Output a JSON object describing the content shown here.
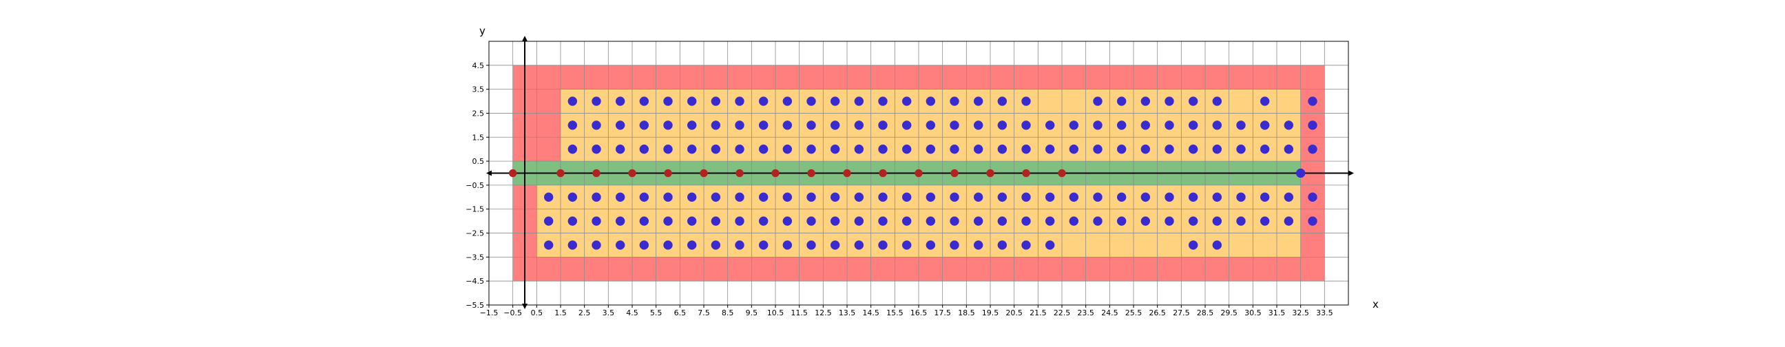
{
  "chart_data": {
    "type": "scatter",
    "title": "",
    "xlabel": "x",
    "ylabel": "y",
    "xlim": [
      -1.5,
      34.5
    ],
    "ylim": [
      -5.5,
      5.5
    ],
    "x_ticks": [
      "-1.5",
      "-0.5",
      "0.5",
      "1.5",
      "2.5",
      "3.5",
      "4.5",
      "5.5",
      "6.5",
      "7.5",
      "8.5",
      "9.5",
      "10.5",
      "11.5",
      "12.5",
      "13.5",
      "14.5",
      "15.5",
      "16.5",
      "17.5",
      "18.5",
      "19.5",
      "20.5",
      "21.5",
      "22.5",
      "23.5",
      "24.5",
      "25.5",
      "26.5",
      "27.5",
      "28.5",
      "29.5",
      "30.5",
      "31.5",
      "32.5",
      "33.5"
    ],
    "y_ticks": [
      "-5.5",
      "-4.5",
      "-3.5",
      "-2.5",
      "-1.5",
      "-0.5",
      "0.5",
      "1.5",
      "2.5",
      "3.5",
      "4.5"
    ],
    "grid": true,
    "regions": [
      {
        "name": "outer",
        "color": "#ff7f7f",
        "x": [
          -0.5,
          33.5
        ],
        "y": [
          -4.5,
          4.5
        ]
      },
      {
        "name": "upper-inner",
        "color": "#ffd27f",
        "x": [
          1.5,
          32.5
        ],
        "y": [
          0.5,
          3.5
        ]
      },
      {
        "name": "lower-inner",
        "color": "#ffd27f",
        "x": [
          0.5,
          32.5
        ],
        "y": [
          -3.5,
          -0.5
        ]
      },
      {
        "name": "axis-band",
        "color": "#7fbf7f",
        "x": [
          -0.5,
          32.5
        ],
        "y": [
          -0.5,
          0.5
        ]
      }
    ],
    "series": [
      {
        "color": "#3a2bd0",
        "points": [
          [
            2,
            3
          ],
          [
            3,
            3
          ],
          [
            4,
            3
          ],
          [
            5,
            3
          ],
          [
            6,
            3
          ],
          [
            7,
            3
          ],
          [
            8,
            3
          ],
          [
            9,
            3
          ],
          [
            10,
            3
          ],
          [
            11,
            3
          ],
          [
            12,
            3
          ],
          [
            13,
            3
          ],
          [
            14,
            3
          ],
          [
            15,
            3
          ],
          [
            16,
            3
          ],
          [
            17,
            3
          ],
          [
            18,
            3
          ],
          [
            19,
            3
          ],
          [
            20,
            3
          ],
          [
            21,
            3
          ],
          [
            24,
            3
          ],
          [
            25,
            3
          ],
          [
            26,
            3
          ],
          [
            27,
            3
          ],
          [
            28,
            3
          ],
          [
            29,
            3
          ],
          [
            31,
            3
          ],
          [
            33,
            3
          ],
          [
            2,
            2
          ],
          [
            3,
            2
          ],
          [
            4,
            2
          ],
          [
            5,
            2
          ],
          [
            6,
            2
          ],
          [
            7,
            2
          ],
          [
            8,
            2
          ],
          [
            9,
            2
          ],
          [
            10,
            2
          ],
          [
            11,
            2
          ],
          [
            12,
            2
          ],
          [
            13,
            2
          ],
          [
            14,
            2
          ],
          [
            15,
            2
          ],
          [
            16,
            2
          ],
          [
            17,
            2
          ],
          [
            18,
            2
          ],
          [
            19,
            2
          ],
          [
            20,
            2
          ],
          [
            21,
            2
          ],
          [
            22,
            2
          ],
          [
            23,
            2
          ],
          [
            24,
            2
          ],
          [
            25,
            2
          ],
          [
            26,
            2
          ],
          [
            27,
            2
          ],
          [
            28,
            2
          ],
          [
            29,
            2
          ],
          [
            30,
            2
          ],
          [
            31,
            2
          ],
          [
            32,
            2
          ],
          [
            33,
            2
          ],
          [
            2,
            1
          ],
          [
            3,
            1
          ],
          [
            4,
            1
          ],
          [
            5,
            1
          ],
          [
            6,
            1
          ],
          [
            7,
            1
          ],
          [
            8,
            1
          ],
          [
            9,
            1
          ],
          [
            10,
            1
          ],
          [
            11,
            1
          ],
          [
            12,
            1
          ],
          [
            13,
            1
          ],
          [
            14,
            1
          ],
          [
            15,
            1
          ],
          [
            16,
            1
          ],
          [
            17,
            1
          ],
          [
            18,
            1
          ],
          [
            19,
            1
          ],
          [
            20,
            1
          ],
          [
            21,
            1
          ],
          [
            22,
            1
          ],
          [
            23,
            1
          ],
          [
            24,
            1
          ],
          [
            25,
            1
          ],
          [
            26,
            1
          ],
          [
            27,
            1
          ],
          [
            28,
            1
          ],
          [
            29,
            1
          ],
          [
            30,
            1
          ],
          [
            31,
            1
          ],
          [
            32,
            1
          ],
          [
            33,
            1
          ],
          [
            32.5,
            0
          ],
          [
            1,
            -1
          ],
          [
            2,
            -1
          ],
          [
            3,
            -1
          ],
          [
            4,
            -1
          ],
          [
            5,
            -1
          ],
          [
            6,
            -1
          ],
          [
            7,
            -1
          ],
          [
            8,
            -1
          ],
          [
            9,
            -1
          ],
          [
            10,
            -1
          ],
          [
            11,
            -1
          ],
          [
            12,
            -1
          ],
          [
            13,
            -1
          ],
          [
            14,
            -1
          ],
          [
            15,
            -1
          ],
          [
            16,
            -1
          ],
          [
            17,
            -1
          ],
          [
            18,
            -1
          ],
          [
            19,
            -1
          ],
          [
            20,
            -1
          ],
          [
            21,
            -1
          ],
          [
            22,
            -1
          ],
          [
            23,
            -1
          ],
          [
            24,
            -1
          ],
          [
            25,
            -1
          ],
          [
            26,
            -1
          ],
          [
            27,
            -1
          ],
          [
            28,
            -1
          ],
          [
            29,
            -1
          ],
          [
            30,
            -1
          ],
          [
            31,
            -1
          ],
          [
            32,
            -1
          ],
          [
            33,
            -1
          ],
          [
            1,
            -2
          ],
          [
            2,
            -2
          ],
          [
            3,
            -2
          ],
          [
            4,
            -2
          ],
          [
            5,
            -2
          ],
          [
            6,
            -2
          ],
          [
            7,
            -2
          ],
          [
            8,
            -2
          ],
          [
            9,
            -2
          ],
          [
            10,
            -2
          ],
          [
            11,
            -2
          ],
          [
            12,
            -2
          ],
          [
            13,
            -2
          ],
          [
            14,
            -2
          ],
          [
            15,
            -2
          ],
          [
            16,
            -2
          ],
          [
            17,
            -2
          ],
          [
            18,
            -2
          ],
          [
            19,
            -2
          ],
          [
            20,
            -2
          ],
          [
            21,
            -2
          ],
          [
            22,
            -2
          ],
          [
            23,
            -2
          ],
          [
            24,
            -2
          ],
          [
            25,
            -2
          ],
          [
            26,
            -2
          ],
          [
            27,
            -2
          ],
          [
            28,
            -2
          ],
          [
            29,
            -2
          ],
          [
            30,
            -2
          ],
          [
            31,
            -2
          ],
          [
            32,
            -2
          ],
          [
            33,
            -2
          ],
          [
            1,
            -3
          ],
          [
            2,
            -3
          ],
          [
            3,
            -3
          ],
          [
            4,
            -3
          ],
          [
            5,
            -3
          ],
          [
            6,
            -3
          ],
          [
            7,
            -3
          ],
          [
            8,
            -3
          ],
          [
            9,
            -3
          ],
          [
            10,
            -3
          ],
          [
            11,
            -3
          ],
          [
            12,
            -3
          ],
          [
            13,
            -3
          ],
          [
            14,
            -3
          ],
          [
            15,
            -3
          ],
          [
            16,
            -3
          ],
          [
            17,
            -3
          ],
          [
            18,
            -3
          ],
          [
            19,
            -3
          ],
          [
            20,
            -3
          ],
          [
            21,
            -3
          ],
          [
            22,
            -3
          ],
          [
            28,
            -3
          ],
          [
            29,
            -3
          ]
        ]
      },
      {
        "color": "#b22222",
        "points": [
          [
            -0.5,
            0
          ],
          [
            1.5,
            0
          ],
          [
            3,
            0
          ],
          [
            4.5,
            0
          ],
          [
            6,
            0
          ],
          [
            7.5,
            0
          ],
          [
            9,
            0
          ],
          [
            10.5,
            0
          ],
          [
            12,
            0
          ],
          [
            13.5,
            0
          ],
          [
            15,
            0
          ],
          [
            16.5,
            0
          ],
          [
            18,
            0
          ],
          [
            19.5,
            0
          ],
          [
            21,
            0
          ],
          [
            22.5,
            0
          ]
        ]
      }
    ]
  }
}
